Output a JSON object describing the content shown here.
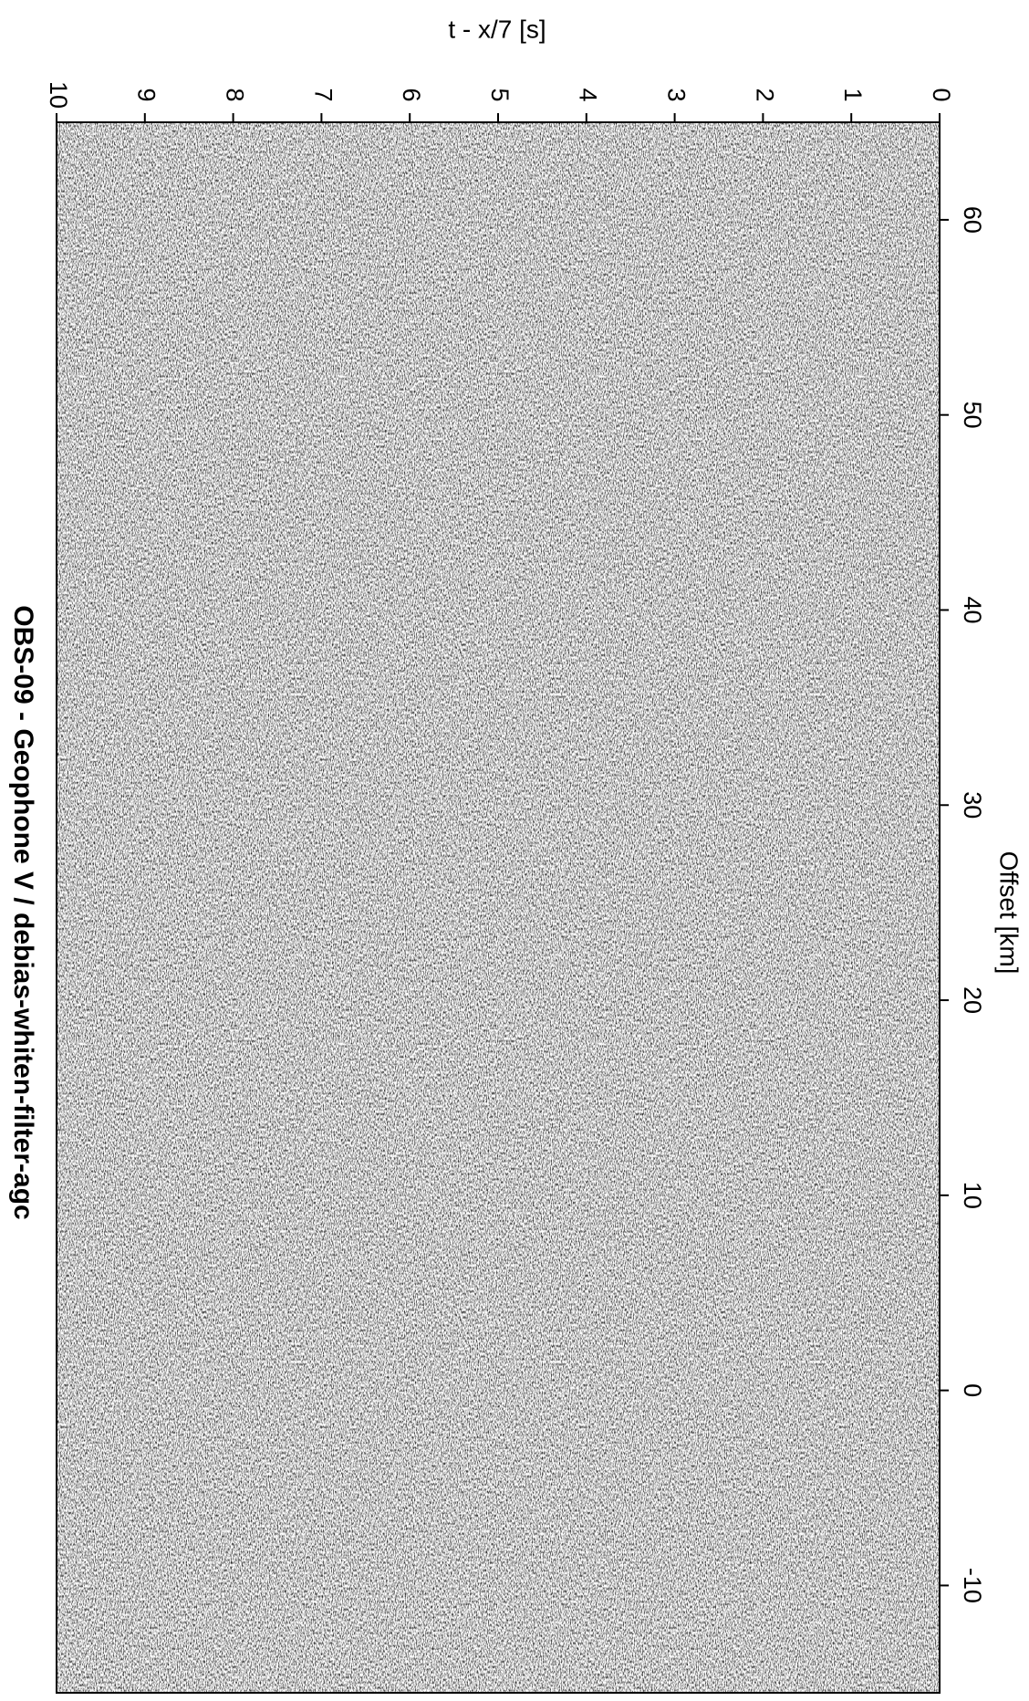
{
  "chart_data": {
    "type": "seismic-section",
    "title": "OBS-09  - Geophone V / debias-whiten-filter-agc",
    "x_label": "Offset [km]",
    "y_label": "t - x/7 [s]",
    "xlim": [
      -15.5,
      65
    ],
    "xticks": [
      -10,
      0,
      10,
      20,
      30,
      40,
      50,
      60
    ],
    "ylim": [
      0,
      10
    ],
    "yticks": [
      0,
      1,
      2,
      3,
      4,
      5,
      6,
      7,
      8,
      9,
      10
    ]
  }
}
